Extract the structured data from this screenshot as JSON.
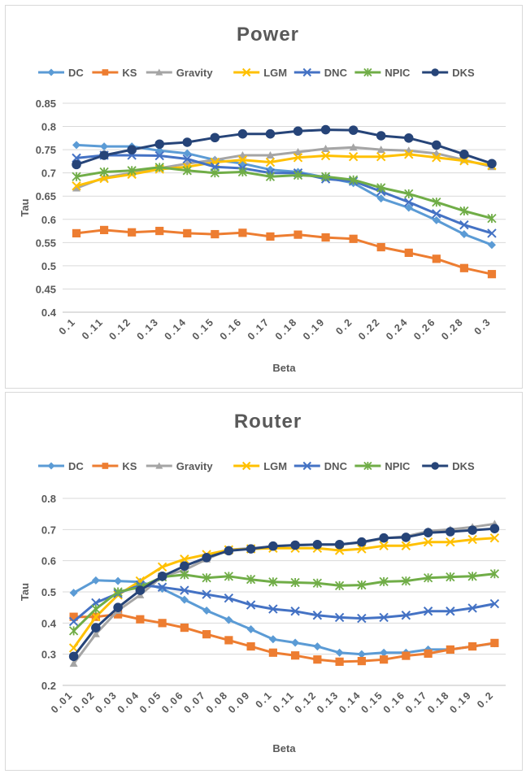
{
  "charts": [
    {
      "id": "power",
      "chart_data": {
        "type": "line",
        "title": "Power",
        "xlabel": "Beta",
        "ylabel": "Tau",
        "ylim": [
          0.4,
          0.85
        ],
        "yticks": [
          "0.4",
          "0.45",
          "0.5",
          "0.55",
          "0.6",
          "0.65",
          "0.7",
          "0.75",
          "0.8",
          "0.85"
        ],
        "categories": [
          "0.1",
          "0.11",
          "0.12",
          "0.13",
          "0.14",
          "0.15",
          "0.16",
          "0.17",
          "0.18",
          "0.19",
          "0.2",
          "0.22",
          "0.24",
          "0.26",
          "0.28",
          "0.3"
        ],
        "grid": true,
        "legend": "top",
        "series": [
          {
            "name": "DC",
            "color": "#5B9BD5",
            "marker": "diamond",
            "values": [
              0.76,
              0.757,
              0.757,
              0.748,
              0.742,
              0.728,
              0.72,
              0.707,
              0.702,
              0.69,
              0.678,
              0.645,
              0.625,
              0.598,
              0.568,
              0.545
            ]
          },
          {
            "name": "KS",
            "color": "#ED7D31",
            "marker": "square",
            "values": [
              0.57,
              0.577,
              0.572,
              0.575,
              0.57,
              0.568,
              0.571,
              0.563,
              0.567,
              0.561,
              0.558,
              0.54,
              0.528,
              0.515,
              0.495,
              0.482
            ]
          },
          {
            "name": "Gravity",
            "color": "#A5A5A5",
            "marker": "triangle",
            "values": [
              0.667,
              0.69,
              0.7,
              0.71,
              0.72,
              0.728,
              0.738,
              0.738,
              0.745,
              0.752,
              0.755,
              0.75,
              0.748,
              0.742,
              0.728,
              0.713
            ]
          },
          {
            "name": "LGM",
            "color": "#FFC000",
            "marker": "x",
            "values": [
              0.672,
              0.688,
              0.697,
              0.708,
              0.713,
              0.723,
              0.728,
              0.723,
              0.733,
              0.737,
              0.735,
              0.735,
              0.74,
              0.733,
              0.726,
              0.716
            ]
          },
          {
            "name": "DNC",
            "color": "#4472C4",
            "marker": "x",
            "values": [
              0.732,
              0.738,
              0.738,
              0.737,
              0.73,
              0.713,
              0.71,
              0.7,
              0.7,
              0.687,
              0.682,
              0.66,
              0.637,
              0.612,
              0.588,
              0.57
            ]
          },
          {
            "name": "NPIC",
            "color": "#70AD47",
            "marker": "star",
            "values": [
              0.692,
              0.702,
              0.705,
              0.712,
              0.705,
              0.7,
              0.702,
              0.692,
              0.695,
              0.692,
              0.685,
              0.668,
              0.655,
              0.637,
              0.618,
              0.602
            ]
          },
          {
            "name": "DKS",
            "color": "#264478",
            "marker": "circle",
            "values": [
              0.718,
              0.738,
              0.75,
              0.762,
              0.766,
              0.776,
              0.784,
              0.784,
              0.79,
              0.793,
              0.792,
              0.78,
              0.775,
              0.76,
              0.74,
              0.72
            ]
          }
        ]
      }
    },
    {
      "id": "router",
      "chart_data": {
        "type": "line",
        "title": "Router",
        "xlabel": "Beta",
        "ylabel": "Tau",
        "ylim": [
          0.2,
          0.8
        ],
        "yticks": [
          "0.2",
          "0.3",
          "0.4",
          "0.5",
          "0.6",
          "0.7",
          "0.8"
        ],
        "categories": [
          "0.01",
          "0.02",
          "0.03",
          "0.04",
          "0.05",
          "0.06",
          "0.07",
          "0.08",
          "0.09",
          "0.1",
          "0.11",
          "0.12",
          "0.13",
          "0.14",
          "0.15",
          "0.16",
          "0.17",
          "0.18",
          "0.19",
          "0.2"
        ],
        "grid": true,
        "legend": "top",
        "series": [
          {
            "name": "DC",
            "color": "#5B9BD5",
            "marker": "diamond",
            "values": [
              0.497,
              0.537,
              0.535,
              0.532,
              0.51,
              0.475,
              0.44,
              0.41,
              0.38,
              0.348,
              0.337,
              0.325,
              0.305,
              0.3,
              0.305,
              0.305,
              0.315,
              0.315,
              0.325,
              0.335
            ]
          },
          {
            "name": "KS",
            "color": "#ED7D31",
            "marker": "square",
            "values": [
              0.42,
              0.42,
              0.428,
              0.412,
              0.4,
              0.385,
              0.364,
              0.345,
              0.325,
              0.305,
              0.296,
              0.283,
              0.276,
              0.278,
              0.283,
              0.295,
              0.302,
              0.315,
              0.325,
              0.336
            ]
          },
          {
            "name": "Gravity",
            "color": "#A5A5A5",
            "marker": "triangle",
            "values": [
              0.27,
              0.365,
              0.44,
              0.49,
              0.55,
              0.57,
              0.605,
              0.635,
              0.64,
              0.645,
              0.65,
              0.652,
              0.652,
              0.658,
              0.672,
              0.678,
              0.695,
              0.7,
              0.708,
              0.718
            ]
          },
          {
            "name": "LGM",
            "color": "#FFC000",
            "marker": "x",
            "values": [
              0.32,
              0.42,
              0.49,
              0.535,
              0.58,
              0.605,
              0.62,
              0.635,
              0.638,
              0.64,
              0.64,
              0.64,
              0.633,
              0.638,
              0.648,
              0.648,
              0.66,
              0.66,
              0.668,
              0.673
            ]
          },
          {
            "name": "DNC",
            "color": "#4472C4",
            "marker": "x",
            "values": [
              0.405,
              0.465,
              0.495,
              0.522,
              0.515,
              0.505,
              0.492,
              0.48,
              0.458,
              0.445,
              0.438,
              0.425,
              0.418,
              0.415,
              0.418,
              0.425,
              0.438,
              0.438,
              0.448,
              0.462
            ]
          },
          {
            "name": "NPIC",
            "color": "#70AD47",
            "marker": "star",
            "values": [
              0.375,
              0.445,
              0.5,
              0.515,
              0.548,
              0.555,
              0.545,
              0.55,
              0.54,
              0.532,
              0.53,
              0.528,
              0.52,
              0.522,
              0.533,
              0.535,
              0.545,
              0.548,
              0.55,
              0.558
            ]
          },
          {
            "name": "DKS",
            "color": "#264478",
            "marker": "circle",
            "values": [
              0.293,
              0.385,
              0.45,
              0.505,
              0.55,
              0.583,
              0.61,
              0.632,
              0.638,
              0.647,
              0.65,
              0.652,
              0.652,
              0.66,
              0.673,
              0.675,
              0.69,
              0.693,
              0.698,
              0.703
            ]
          }
        ]
      }
    }
  ]
}
